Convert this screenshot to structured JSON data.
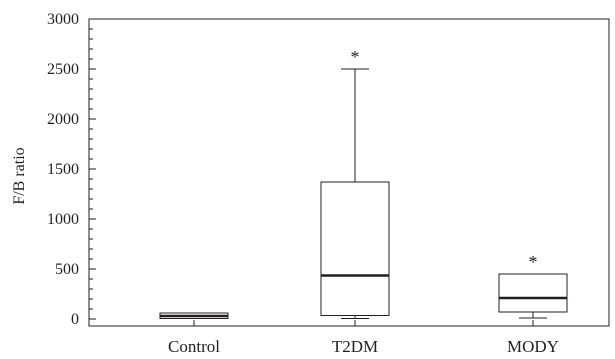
{
  "chart_data": {
    "type": "boxplot",
    "title": "",
    "xlabel": "",
    "ylabel": "F/B ratio",
    "ylim": [
      -100,
      3000
    ],
    "yticks": [
      0,
      500,
      1000,
      1500,
      2000,
      2500,
      3000
    ],
    "categories": [
      "Control",
      "T2DM",
      "MODY"
    ],
    "boxes": [
      {
        "category": "Control",
        "whisker_low": 5,
        "q1": 5,
        "median": 30,
        "q3": 60,
        "whisker_high": 60,
        "annotation": ""
      },
      {
        "category": "T2DM",
        "whisker_low": 5,
        "q1": 35,
        "median": 435,
        "q3": 1370,
        "whisker_high": 2500,
        "annotation": "*"
      },
      {
        "category": "MODY",
        "whisker_low": 10,
        "q1": 70,
        "median": 210,
        "q3": 450,
        "whisker_high": 450,
        "annotation": "*"
      }
    ],
    "grid": false,
    "colors": {
      "stroke": "#231f20",
      "background": "#ffffff"
    }
  }
}
